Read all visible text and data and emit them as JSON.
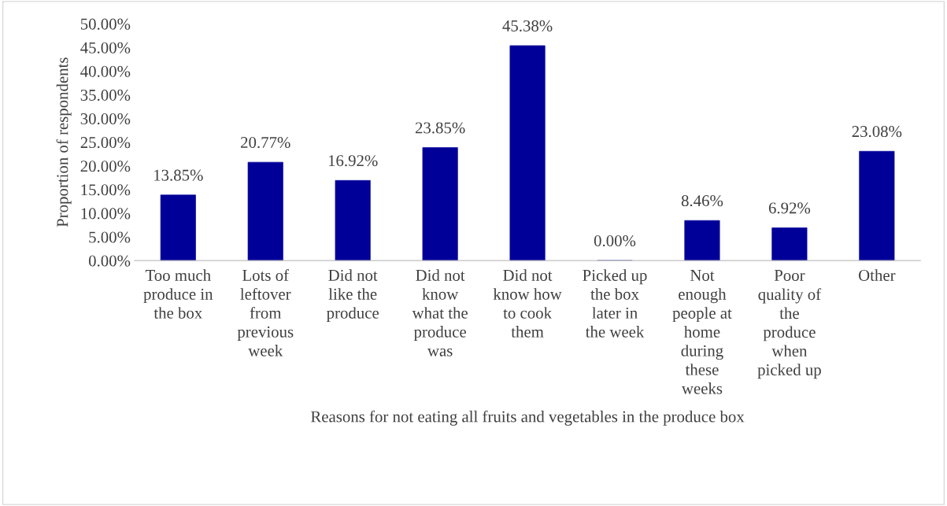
{
  "chart_data": {
    "type": "bar",
    "xlabel": "Reasons for not eating all fruits and vegetables in the produce box",
    "ylabel": "Proportion of respondents",
    "categories": [
      "Too much\nproduce in\nthe box",
      "Lots of\nleftover\nfrom\nprevious\nweek",
      "Did not\nlike the\nproduce",
      "Did not\nknow\nwhat the\nproduce\nwas",
      "Did not\nknow how\nto cook\nthem",
      "Picked up\nthe box\nlater in\nthe week",
      "Not\nenough\npeople at\nhome\nduring\nthese\nweeks",
      "Poor\nquality of\nthe\nproduce\nwhen\npicked up",
      "Other"
    ],
    "values": [
      13.85,
      20.77,
      16.92,
      23.85,
      45.38,
      0.0,
      8.46,
      6.92,
      23.08
    ],
    "value_labels": [
      "13.85%",
      "20.77%",
      "16.92%",
      "23.85%",
      "45.38%",
      "0.00%",
      "8.46%",
      "6.92%",
      "23.08%"
    ],
    "color": "#000099",
    "ylim": [
      0,
      50
    ],
    "yticks": [
      {
        "value": 0,
        "label": "0.00%"
      },
      {
        "value": 5,
        "label": "5.00%"
      },
      {
        "value": 10,
        "label": "10.00%"
      },
      {
        "value": 15,
        "label": "15.00%"
      },
      {
        "value": 20,
        "label": "20.00%"
      },
      {
        "value": 25,
        "label": "25.00%"
      },
      {
        "value": 30,
        "label": "30.00%"
      },
      {
        "value": 35,
        "label": "35.00%"
      },
      {
        "value": 40,
        "label": "40.00%"
      },
      {
        "value": 45,
        "label": "45.00%"
      },
      {
        "value": 50,
        "label": "50.00%"
      }
    ],
    "grid": false,
    "legend": false
  }
}
